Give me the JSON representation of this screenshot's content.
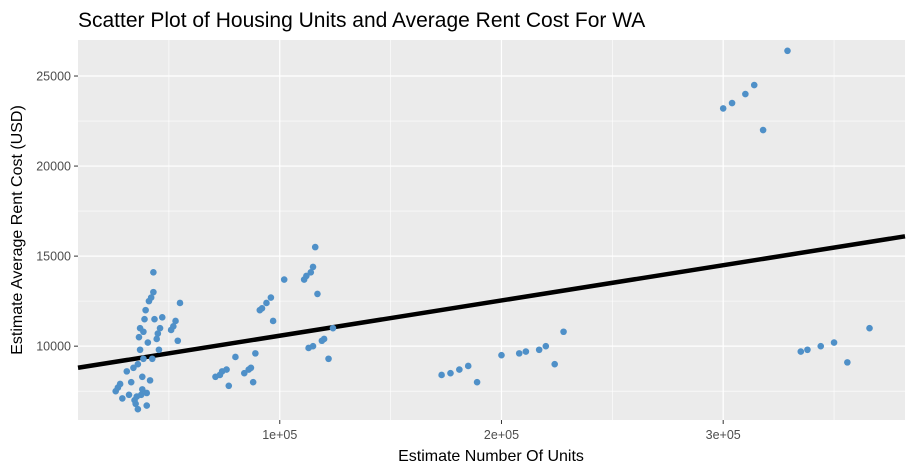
{
  "chart_data": {
    "type": "scatter",
    "title": "Scatter Plot of Housing Units and Average Rent Cost For WA",
    "xlabel": "Estimate Number Of Units",
    "ylabel": "Estimate Average Rent Cost (USD)",
    "xlim": [
      9000,
      382000
    ],
    "ylim": [
      5900,
      27000
    ],
    "x_ticks": [
      100000,
      200000,
      300000
    ],
    "x_tick_labels": [
      "1e+05",
      "2e+05",
      "3e+05"
    ],
    "y_ticks": [
      10000,
      15000,
      20000,
      25000
    ],
    "y_tick_labels": [
      "10000",
      "15000",
      "20000",
      "25000"
    ],
    "grid": true,
    "legend": "none",
    "colors": {
      "points": "#4f90c8",
      "trend_line": "#000000",
      "panel": "#ebebeb",
      "grid": "#ffffff"
    },
    "trend_line": {
      "x": [
        9000,
        382000
      ],
      "y": [
        8800,
        16100
      ]
    },
    "points": [
      {
        "x": 26000,
        "y": 7500
      },
      {
        "x": 27000,
        "y": 7700
      },
      {
        "x": 28000,
        "y": 7900
      },
      {
        "x": 29000,
        "y": 7100
      },
      {
        "x": 31000,
        "y": 8600
      },
      {
        "x": 32000,
        "y": 7300
      },
      {
        "x": 33000,
        "y": 8000
      },
      {
        "x": 34000,
        "y": 8800
      },
      {
        "x": 34500,
        "y": 7000
      },
      {
        "x": 35000,
        "y": 6800
      },
      {
        "x": 35500,
        "y": 7200
      },
      {
        "x": 36000,
        "y": 6500
      },
      {
        "x": 36000,
        "y": 9000
      },
      {
        "x": 36500,
        "y": 10500
      },
      {
        "x": 37000,
        "y": 9800
      },
      {
        "x": 37000,
        "y": 11000
      },
      {
        "x": 37500,
        "y": 7300
      },
      {
        "x": 38000,
        "y": 7600
      },
      {
        "x": 38000,
        "y": 8300
      },
      {
        "x": 38500,
        "y": 9300
      },
      {
        "x": 38500,
        "y": 10800
      },
      {
        "x": 39000,
        "y": 11500
      },
      {
        "x": 39500,
        "y": 12000
      },
      {
        "x": 40000,
        "y": 6700
      },
      {
        "x": 40000,
        "y": 7400
      },
      {
        "x": 40500,
        "y": 10200
      },
      {
        "x": 41000,
        "y": 12500
      },
      {
        "x": 41500,
        "y": 8100
      },
      {
        "x": 42000,
        "y": 12700
      },
      {
        "x": 42500,
        "y": 9300
      },
      {
        "x": 43000,
        "y": 13000
      },
      {
        "x": 43000,
        "y": 14100
      },
      {
        "x": 43500,
        "y": 11500
      },
      {
        "x": 44500,
        "y": 10400
      },
      {
        "x": 45000,
        "y": 10700
      },
      {
        "x": 45500,
        "y": 9800
      },
      {
        "x": 46000,
        "y": 11000
      },
      {
        "x": 47000,
        "y": 11600
      },
      {
        "x": 51000,
        "y": 10900
      },
      {
        "x": 52000,
        "y": 11100
      },
      {
        "x": 53000,
        "y": 11400
      },
      {
        "x": 54000,
        "y": 10300
      },
      {
        "x": 55000,
        "y": 12400
      },
      {
        "x": 71000,
        "y": 8300
      },
      {
        "x": 73000,
        "y": 8400
      },
      {
        "x": 74000,
        "y": 8600
      },
      {
        "x": 76000,
        "y": 8700
      },
      {
        "x": 77000,
        "y": 7800
      },
      {
        "x": 80000,
        "y": 9400
      },
      {
        "x": 84000,
        "y": 8500
      },
      {
        "x": 86000,
        "y": 8700
      },
      {
        "x": 87000,
        "y": 8800
      },
      {
        "x": 88000,
        "y": 8000
      },
      {
        "x": 89000,
        "y": 9600
      },
      {
        "x": 91000,
        "y": 12000
      },
      {
        "x": 92000,
        "y": 12100
      },
      {
        "x": 94000,
        "y": 12400
      },
      {
        "x": 96000,
        "y": 12700
      },
      {
        "x": 97000,
        "y": 11400
      },
      {
        "x": 102000,
        "y": 13700
      },
      {
        "x": 111000,
        "y": 13700
      },
      {
        "x": 112000,
        "y": 13900
      },
      {
        "x": 113000,
        "y": 9900
      },
      {
        "x": 114000,
        "y": 14100
      },
      {
        "x": 115000,
        "y": 10000
      },
      {
        "x": 115000,
        "y": 14400
      },
      {
        "x": 116000,
        "y": 15500
      },
      {
        "x": 117000,
        "y": 12900
      },
      {
        "x": 119000,
        "y": 10300
      },
      {
        "x": 120000,
        "y": 10400
      },
      {
        "x": 122000,
        "y": 9300
      },
      {
        "x": 124000,
        "y": 11000
      },
      {
        "x": 173000,
        "y": 8400
      },
      {
        "x": 177000,
        "y": 8500
      },
      {
        "x": 181000,
        "y": 8700
      },
      {
        "x": 185000,
        "y": 8900
      },
      {
        "x": 189000,
        "y": 8000
      },
      {
        "x": 200000,
        "y": 9500
      },
      {
        "x": 208000,
        "y": 9600
      },
      {
        "x": 211000,
        "y": 9700
      },
      {
        "x": 217000,
        "y": 9800
      },
      {
        "x": 220000,
        "y": 10000
      },
      {
        "x": 224000,
        "y": 9000
      },
      {
        "x": 228000,
        "y": 10800
      },
      {
        "x": 300000,
        "y": 23200
      },
      {
        "x": 304000,
        "y": 23500
      },
      {
        "x": 310000,
        "y": 24000
      },
      {
        "x": 314000,
        "y": 24500
      },
      {
        "x": 318000,
        "y": 22000
      },
      {
        "x": 329000,
        "y": 26400
      },
      {
        "x": 335000,
        "y": 9700
      },
      {
        "x": 338000,
        "y": 9800
      },
      {
        "x": 344000,
        "y": 10000
      },
      {
        "x": 350000,
        "y": 10200
      },
      {
        "x": 356000,
        "y": 9100
      },
      {
        "x": 366000,
        "y": 11000
      }
    ]
  }
}
